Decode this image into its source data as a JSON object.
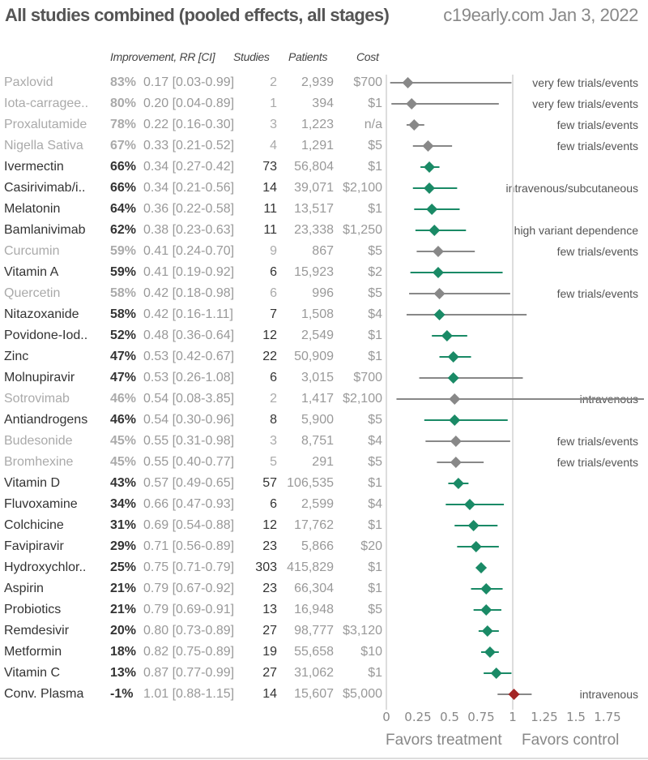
{
  "header": {
    "title": "All studies combined (pooled effects, all stages)",
    "source": "c19early.com Jan 3, 2022"
  },
  "columns": {
    "improvement": "Improvement, RR [CI]",
    "studies": "Studies",
    "patients": "Patients",
    "cost": "Cost"
  },
  "colors": {
    "positive": "#1a8a66",
    "low_confidence": "#888888",
    "negative": "#a32626",
    "reference_line": "#dddddd"
  },
  "footer": {
    "favors_treatment": "Favors treatment",
    "favors_control": "Favors control"
  },
  "chart_data": {
    "type": "forest",
    "title": "All studies combined (pooled effects, all stages)",
    "xlabel_left": "Favors treatment",
    "xlabel_right": "Favors control",
    "xlim": [
      0,
      1.75
    ],
    "xticks": [
      "0",
      "0.25",
      "0.5",
      "0.75",
      "1",
      "1.25",
      "1.5",
      "1.75"
    ],
    "reference_value": 1,
    "rows": [
      {
        "name": "Paxlovid",
        "improvement": "83%",
        "rr": 0.17,
        "lo": 0.03,
        "hi": 0.99,
        "rr_text": "0.17 [0.03-0.99]",
        "studies": "2",
        "patients": "2,939",
        "cost": "$700",
        "note": "very few trials/events",
        "status": "low"
      },
      {
        "name": "Iota-carragee..",
        "improvement": "80%",
        "rr": 0.2,
        "lo": 0.04,
        "hi": 0.89,
        "rr_text": "0.20 [0.04-0.89]",
        "studies": "1",
        "patients": "394",
        "cost": "$1",
        "note": "very few trials/events",
        "status": "low"
      },
      {
        "name": "Proxalutamide",
        "improvement": "78%",
        "rr": 0.22,
        "lo": 0.16,
        "hi": 0.3,
        "rr_text": "0.22 [0.16-0.30]",
        "studies": "3",
        "patients": "1,223",
        "cost": "n/a",
        "note": "few trials/events",
        "status": "low"
      },
      {
        "name": "Nigella Sativa",
        "improvement": "67%",
        "rr": 0.33,
        "lo": 0.21,
        "hi": 0.52,
        "rr_text": "0.33 [0.21-0.52]",
        "studies": "4",
        "patients": "1,291",
        "cost": "$5",
        "note": "few trials/events",
        "status": "low"
      },
      {
        "name": "Ivermectin",
        "improvement": "66%",
        "rr": 0.34,
        "lo": 0.27,
        "hi": 0.42,
        "rr_text": "0.34 [0.27-0.42]",
        "studies": "73",
        "patients": "56,804",
        "cost": "$1",
        "note": "",
        "status": "positive"
      },
      {
        "name": "Casirivimab/i..",
        "improvement": "66%",
        "rr": 0.34,
        "lo": 0.21,
        "hi": 0.56,
        "rr_text": "0.34 [0.21-0.56]",
        "studies": "14",
        "patients": "39,071",
        "cost": "$2,100",
        "note": "intravenous/subcutaneous",
        "status": "positive"
      },
      {
        "name": "Melatonin",
        "improvement": "64%",
        "rr": 0.36,
        "lo": 0.22,
        "hi": 0.58,
        "rr_text": "0.36 [0.22-0.58]",
        "studies": "11",
        "patients": "13,517",
        "cost": "$1",
        "note": "",
        "status": "positive"
      },
      {
        "name": "Bamlanivimab",
        "improvement": "62%",
        "rr": 0.38,
        "lo": 0.23,
        "hi": 0.63,
        "rr_text": "0.38 [0.23-0.63]",
        "studies": "11",
        "patients": "23,338",
        "cost": "$1,250",
        "note": "high variant dependence",
        "status": "positive"
      },
      {
        "name": "Curcumin",
        "improvement": "59%",
        "rr": 0.41,
        "lo": 0.24,
        "hi": 0.7,
        "rr_text": "0.41 [0.24-0.70]",
        "studies": "9",
        "patients": "867",
        "cost": "$5",
        "note": "few trials/events",
        "status": "low"
      },
      {
        "name": "Vitamin A",
        "improvement": "59%",
        "rr": 0.41,
        "lo": 0.19,
        "hi": 0.92,
        "rr_text": "0.41 [0.19-0.92]",
        "studies": "6",
        "patients": "15,923",
        "cost": "$2",
        "note": "",
        "status": "positive"
      },
      {
        "name": "Quercetin",
        "improvement": "58%",
        "rr": 0.42,
        "lo": 0.18,
        "hi": 0.98,
        "rr_text": "0.42 [0.18-0.98]",
        "studies": "6",
        "patients": "996",
        "cost": "$5",
        "note": "few trials/events",
        "status": "low"
      },
      {
        "name": "Nitazoxanide",
        "improvement": "58%",
        "rr": 0.42,
        "lo": 0.16,
        "hi": 1.11,
        "rr_text": "0.42 [0.16-1.11]",
        "studies": "7",
        "patients": "1,508",
        "cost": "$4",
        "note": "",
        "status": "positive_ci_gray"
      },
      {
        "name": "Povidone-Iod..",
        "improvement": "52%",
        "rr": 0.48,
        "lo": 0.36,
        "hi": 0.64,
        "rr_text": "0.48 [0.36-0.64]",
        "studies": "12",
        "patients": "2,549",
        "cost": "$1",
        "note": "",
        "status": "positive"
      },
      {
        "name": "Zinc",
        "improvement": "47%",
        "rr": 0.53,
        "lo": 0.42,
        "hi": 0.67,
        "rr_text": "0.53 [0.42-0.67]",
        "studies": "22",
        "patients": "50,909",
        "cost": "$1",
        "note": "",
        "status": "positive"
      },
      {
        "name": "Molnupiravir",
        "improvement": "47%",
        "rr": 0.53,
        "lo": 0.26,
        "hi": 1.08,
        "rr_text": "0.53 [0.26-1.08]",
        "studies": "6",
        "patients": "3,015",
        "cost": "$700",
        "note": "",
        "status": "positive_ci_gray"
      },
      {
        "name": "Sotrovimab",
        "improvement": "46%",
        "rr": 0.54,
        "lo": 0.08,
        "hi": 3.85,
        "rr_text": "0.54 [0.08-3.85]",
        "studies": "2",
        "patients": "1,417",
        "cost": "$2,100",
        "note": "intravenous",
        "status": "low"
      },
      {
        "name": "Antiandrogens",
        "improvement": "46%",
        "rr": 0.54,
        "lo": 0.3,
        "hi": 0.96,
        "rr_text": "0.54 [0.30-0.96]",
        "studies": "8",
        "patients": "5,900",
        "cost": "$5",
        "note": "",
        "status": "positive"
      },
      {
        "name": "Budesonide",
        "improvement": "45%",
        "rr": 0.55,
        "lo": 0.31,
        "hi": 0.98,
        "rr_text": "0.55 [0.31-0.98]",
        "studies": "3",
        "patients": "8,751",
        "cost": "$4",
        "note": "few trials/events",
        "status": "low"
      },
      {
        "name": "Bromhexine",
        "improvement": "45%",
        "rr": 0.55,
        "lo": 0.4,
        "hi": 0.77,
        "rr_text": "0.55 [0.40-0.77]",
        "studies": "5",
        "patients": "291",
        "cost": "$5",
        "note": "few trials/events",
        "status": "low"
      },
      {
        "name": "Vitamin D",
        "improvement": "43%",
        "rr": 0.57,
        "lo": 0.49,
        "hi": 0.65,
        "rr_text": "0.57 [0.49-0.65]",
        "studies": "57",
        "patients": "106,535",
        "cost": "$1",
        "note": "",
        "status": "positive"
      },
      {
        "name": "Fluvoxamine",
        "improvement": "34%",
        "rr": 0.66,
        "lo": 0.47,
        "hi": 0.93,
        "rr_text": "0.66 [0.47-0.93]",
        "studies": "6",
        "patients": "2,599",
        "cost": "$4",
        "note": "",
        "status": "positive"
      },
      {
        "name": "Colchicine",
        "improvement": "31%",
        "rr": 0.69,
        "lo": 0.54,
        "hi": 0.88,
        "rr_text": "0.69 [0.54-0.88]",
        "studies": "12",
        "patients": "17,762",
        "cost": "$1",
        "note": "",
        "status": "positive"
      },
      {
        "name": "Favipiravir",
        "improvement": "29%",
        "rr": 0.71,
        "lo": 0.56,
        "hi": 0.89,
        "rr_text": "0.71 [0.56-0.89]",
        "studies": "23",
        "patients": "5,866",
        "cost": "$20",
        "note": "",
        "status": "positive"
      },
      {
        "name": "Hydroxychlor..",
        "improvement": "25%",
        "rr": 0.75,
        "lo": 0.71,
        "hi": 0.79,
        "rr_text": "0.75 [0.71-0.79]",
        "studies": "303",
        "patients": "415,829",
        "cost": "$1",
        "note": "",
        "status": "positive"
      },
      {
        "name": "Aspirin",
        "improvement": "21%",
        "rr": 0.79,
        "lo": 0.67,
        "hi": 0.92,
        "rr_text": "0.79 [0.67-0.92]",
        "studies": "23",
        "patients": "66,304",
        "cost": "$1",
        "note": "",
        "status": "positive"
      },
      {
        "name": "Probiotics",
        "improvement": "21%",
        "rr": 0.79,
        "lo": 0.69,
        "hi": 0.91,
        "rr_text": "0.79 [0.69-0.91]",
        "studies": "13",
        "patients": "16,948",
        "cost": "$5",
        "note": "",
        "status": "positive"
      },
      {
        "name": "Remdesivir",
        "improvement": "20%",
        "rr": 0.8,
        "lo": 0.73,
        "hi": 0.89,
        "rr_text": "0.80 [0.73-0.89]",
        "studies": "27",
        "patients": "98,777",
        "cost": "$3,120",
        "note": "",
        "status": "positive"
      },
      {
        "name": "Metformin",
        "improvement": "18%",
        "rr": 0.82,
        "lo": 0.75,
        "hi": 0.89,
        "rr_text": "0.82 [0.75-0.89]",
        "studies": "19",
        "patients": "55,658",
        "cost": "$10",
        "note": "",
        "status": "positive"
      },
      {
        "name": "Vitamin C",
        "improvement": "13%",
        "rr": 0.87,
        "lo": 0.77,
        "hi": 0.99,
        "rr_text": "0.87 [0.77-0.99]",
        "studies": "27",
        "patients": "31,062",
        "cost": "$1",
        "note": "",
        "status": "positive"
      },
      {
        "name": "Conv. Plasma",
        "improvement": "-1%",
        "rr": 1.01,
        "lo": 0.88,
        "hi": 1.15,
        "rr_text": "1.01 [0.88-1.15]",
        "studies": "14",
        "patients": "15,607",
        "cost": "$5,000",
        "note": "intravenous",
        "status": "negative"
      }
    ]
  }
}
